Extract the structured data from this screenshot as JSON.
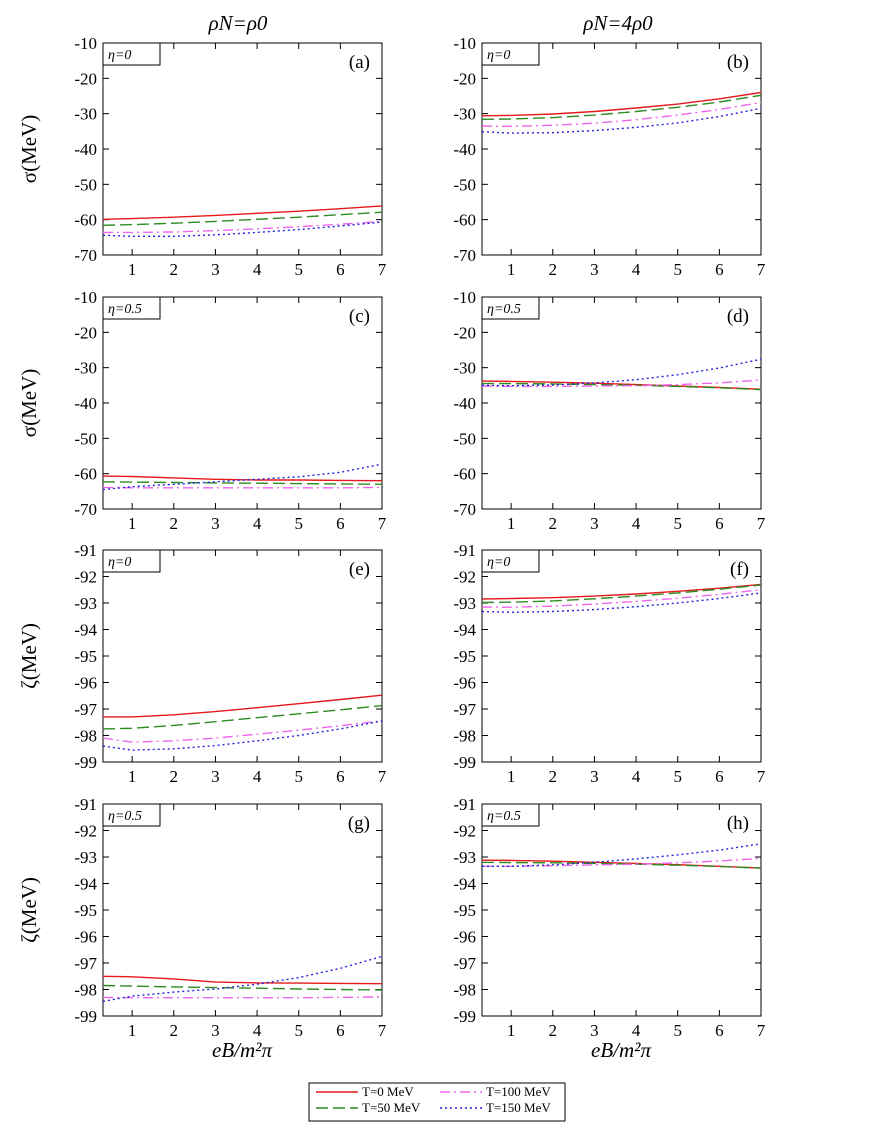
{
  "column_titles": [
    "ρN=ρ0",
    "ρN=4ρ0"
  ],
  "xlabel": "eB/m²π",
  "legend": [
    {
      "label": "T=0 MeV",
      "color": "#e41a1c",
      "dash": "solid"
    },
    {
      "label": "T=50 MeV",
      "color": "#2e8b22",
      "dash": "long-dash"
    },
    {
      "label": "T=100 MeV",
      "color": "#ee66ee",
      "dash": "dash-dot"
    },
    {
      "label": "T=150 MeV",
      "color": "#2222dd",
      "dash": "dotted"
    }
  ],
  "chart_data": [
    {
      "type": "line",
      "panel": "(a)",
      "eta_label": "η=0",
      "ylabel": "σ(MeV)",
      "xlim": [
        0.3,
        7
      ],
      "ylim": [
        -70,
        -10
      ],
      "xticks": [
        1,
        2,
        3,
        4,
        5,
        6,
        7
      ],
      "yticks": [
        -10,
        -20,
        -30,
        -40,
        -50,
        -60,
        -70
      ],
      "x": [
        0.3,
        1,
        2,
        3,
        4,
        5,
        6,
        7
      ],
      "series": [
        {
          "name": "T=0 MeV",
          "values": [
            -59.9,
            -59.7,
            -59.3,
            -58.8,
            -58.2,
            -57.6,
            -56.9,
            -56.1
          ]
        },
        {
          "name": "T=50 MeV",
          "values": [
            -61.6,
            -61.4,
            -61.0,
            -60.5,
            -59.9,
            -59.3,
            -58.6,
            -57.9
          ]
        },
        {
          "name": "T=100 MeV",
          "values": [
            -63.6,
            -63.6,
            -63.5,
            -63.1,
            -62.6,
            -62.0,
            -61.3,
            -60.5
          ]
        },
        {
          "name": "T=150 MeV",
          "values": [
            -64.4,
            -64.7,
            -64.7,
            -64.3,
            -63.6,
            -62.8,
            -61.8,
            -60.7
          ]
        }
      ]
    },
    {
      "type": "line",
      "panel": "(b)",
      "eta_label": "η=0",
      "ylabel": "",
      "xlim": [
        0.3,
        7
      ],
      "ylim": [
        -70,
        -10
      ],
      "xticks": [
        1,
        2,
        3,
        4,
        5,
        6,
        7
      ],
      "yticks": [
        -10,
        -20,
        -30,
        -40,
        -50,
        -60,
        -70
      ],
      "x": [
        0.3,
        1,
        2,
        3,
        4,
        5,
        6,
        7
      ],
      "series": [
        {
          "name": "T=0 MeV",
          "values": [
            -30.6,
            -30.5,
            -30.1,
            -29.4,
            -28.4,
            -27.3,
            -25.8,
            -24.0
          ]
        },
        {
          "name": "T=50 MeV",
          "values": [
            -31.6,
            -31.5,
            -31.1,
            -30.4,
            -29.4,
            -28.2,
            -26.7,
            -24.8
          ]
        },
        {
          "name": "T=100 MeV",
          "values": [
            -33.5,
            -33.6,
            -33.3,
            -32.7,
            -31.7,
            -30.4,
            -28.8,
            -26.8
          ]
        },
        {
          "name": "T=150 MeV",
          "values": [
            -35.1,
            -35.5,
            -35.4,
            -34.8,
            -33.9,
            -32.6,
            -30.8,
            -28.5
          ]
        }
      ]
    },
    {
      "type": "line",
      "panel": "(c)",
      "eta_label": "η=0.5",
      "ylabel": "σ(MeV)",
      "xlim": [
        0.3,
        7
      ],
      "ylim": [
        -70,
        -10
      ],
      "xticks": [
        1,
        2,
        3,
        4,
        5,
        6,
        7
      ],
      "yticks": [
        -10,
        -20,
        -30,
        -40,
        -50,
        -60,
        -70
      ],
      "x": [
        0.3,
        1,
        2,
        3,
        4,
        5,
        6,
        7
      ],
      "series": [
        {
          "name": "T=0 MeV",
          "values": [
            -60.7,
            -60.8,
            -61.2,
            -61.6,
            -61.8,
            -61.8,
            -61.9,
            -62.0
          ]
        },
        {
          "name": "T=50 MeV",
          "values": [
            -62.3,
            -62.4,
            -62.5,
            -62.6,
            -62.7,
            -62.8,
            -62.9,
            -63.0
          ]
        },
        {
          "name": "T=100 MeV",
          "values": [
            -63.9,
            -64.0,
            -64.0,
            -64.0,
            -64.0,
            -64.0,
            -64.0,
            -63.9
          ]
        },
        {
          "name": "T=150 MeV",
          "values": [
            -64.5,
            -63.7,
            -63.0,
            -62.3,
            -61.6,
            -60.9,
            -59.6,
            -57.3
          ]
        }
      ]
    },
    {
      "type": "line",
      "panel": "(d)",
      "eta_label": "η=0.5",
      "ylabel": "",
      "xlim": [
        0.3,
        7
      ],
      "ylim": [
        -70,
        -10
      ],
      "xticks": [
        1,
        2,
        3,
        4,
        5,
        6,
        7
      ],
      "yticks": [
        -10,
        -20,
        -30,
        -40,
        -50,
        -60,
        -70
      ],
      "x": [
        0.3,
        1,
        2,
        3,
        4,
        5,
        6,
        7
      ],
      "series": [
        {
          "name": "T=0 MeV",
          "values": [
            -33.8,
            -33.9,
            -34.1,
            -34.4,
            -34.8,
            -35.2,
            -35.6,
            -36.1
          ]
        },
        {
          "name": "T=50 MeV",
          "values": [
            -34.5,
            -34.5,
            -34.6,
            -34.8,
            -35.0,
            -35.3,
            -35.7,
            -36.2
          ]
        },
        {
          "name": "T=100 MeV",
          "values": [
            -35.2,
            -35.3,
            -35.3,
            -35.2,
            -35.1,
            -34.8,
            -34.3,
            -33.5
          ]
        },
        {
          "name": "T=150 MeV",
          "values": [
            -35.0,
            -35.1,
            -34.9,
            -34.3,
            -33.4,
            -32.0,
            -30.1,
            -27.6
          ]
        }
      ]
    },
    {
      "type": "line",
      "panel": "(e)",
      "eta_label": "η=0",
      "ylabel": "ζ(MeV)",
      "xlim": [
        0.3,
        7
      ],
      "ylim": [
        -99,
        -91
      ],
      "xticks": [
        1,
        2,
        3,
        4,
        5,
        6,
        7
      ],
      "yticks": [
        -91,
        -92,
        -93,
        -94,
        -95,
        -96,
        -97,
        -98,
        -99
      ],
      "x": [
        0.3,
        1,
        2,
        3,
        4,
        5,
        6,
        7
      ],
      "series": [
        {
          "name": "T=0 MeV",
          "values": [
            -97.3,
            -97.3,
            -97.22,
            -97.1,
            -96.95,
            -96.8,
            -96.64,
            -96.48
          ]
        },
        {
          "name": "T=50 MeV",
          "values": [
            -97.75,
            -97.73,
            -97.62,
            -97.48,
            -97.33,
            -97.18,
            -97.03,
            -96.87
          ]
        },
        {
          "name": "T=100 MeV",
          "values": [
            -98.1,
            -98.25,
            -98.2,
            -98.1,
            -97.95,
            -97.8,
            -97.63,
            -97.45
          ]
        },
        {
          "name": "T=150 MeV",
          "values": [
            -98.4,
            -98.55,
            -98.5,
            -98.38,
            -98.2,
            -98.0,
            -97.75,
            -97.45
          ]
        }
      ]
    },
    {
      "type": "line",
      "panel": "(f)",
      "eta_label": "η=0",
      "ylabel": "",
      "xlim": [
        0.3,
        7
      ],
      "ylim": [
        -99,
        -91
      ],
      "xticks": [
        1,
        2,
        3,
        4,
        5,
        6,
        7
      ],
      "yticks": [
        -91,
        -92,
        -93,
        -94,
        -95,
        -96,
        -97,
        -98,
        -99
      ],
      "x": [
        0.3,
        1,
        2,
        3,
        4,
        5,
        6,
        7
      ],
      "series": [
        {
          "name": "T=0 MeV",
          "values": [
            -92.85,
            -92.83,
            -92.8,
            -92.74,
            -92.66,
            -92.56,
            -92.44,
            -92.3
          ]
        },
        {
          "name": "T=50 MeV",
          "values": [
            -92.98,
            -92.97,
            -92.92,
            -92.84,
            -92.74,
            -92.62,
            -92.48,
            -92.32
          ]
        },
        {
          "name": "T=100 MeV",
          "values": [
            -93.15,
            -93.16,
            -93.12,
            -93.04,
            -92.94,
            -92.82,
            -92.67,
            -92.5
          ]
        },
        {
          "name": "T=150 MeV",
          "values": [
            -93.32,
            -93.35,
            -93.32,
            -93.25,
            -93.14,
            -93.0,
            -92.83,
            -92.62
          ]
        }
      ]
    },
    {
      "type": "line",
      "panel": "(g)",
      "eta_label": "η=0.5",
      "ylabel": "ζ(MeV)",
      "xlim": [
        0.3,
        7
      ],
      "ylim": [
        -99,
        -91
      ],
      "xticks": [
        1,
        2,
        3,
        4,
        5,
        6,
        7
      ],
      "yticks": [
        -91,
        -92,
        -93,
        -94,
        -95,
        -96,
        -97,
        -98,
        -99
      ],
      "x": [
        0.3,
        1,
        2,
        3,
        4,
        5,
        6,
        7
      ],
      "series": [
        {
          "name": "T=0 MeV",
          "values": [
            -97.5,
            -97.52,
            -97.6,
            -97.72,
            -97.75,
            -97.76,
            -97.77,
            -97.78
          ]
        },
        {
          "name": "T=50 MeV",
          "values": [
            -97.85,
            -97.87,
            -97.9,
            -97.93,
            -97.95,
            -97.98,
            -98.0,
            -98.02
          ]
        },
        {
          "name": "T=100 MeV",
          "values": [
            -98.3,
            -98.31,
            -98.31,
            -98.31,
            -98.31,
            -98.31,
            -98.3,
            -98.28
          ]
        },
        {
          "name": "T=150 MeV",
          "values": [
            -98.45,
            -98.25,
            -98.1,
            -97.98,
            -97.8,
            -97.55,
            -97.2,
            -96.75
          ]
        }
      ]
    },
    {
      "type": "line",
      "panel": "(h)",
      "eta_label": "η=0.5",
      "ylabel": "",
      "xlim": [
        0.3,
        7
      ],
      "ylim": [
        -99,
        -91
      ],
      "xticks": [
        1,
        2,
        3,
        4,
        5,
        6,
        7
      ],
      "yticks": [
        -91,
        -92,
        -93,
        -94,
        -95,
        -96,
        -97,
        -98,
        -99
      ],
      "x": [
        0.3,
        1,
        2,
        3,
        4,
        5,
        6,
        7
      ],
      "series": [
        {
          "name": "T=0 MeV",
          "values": [
            -93.12,
            -93.13,
            -93.16,
            -93.2,
            -93.24,
            -93.29,
            -93.35,
            -93.42
          ]
        },
        {
          "name": "T=50 MeV",
          "values": [
            -93.2,
            -93.21,
            -93.22,
            -93.24,
            -93.27,
            -93.31,
            -93.36,
            -93.42
          ]
        },
        {
          "name": "T=100 MeV",
          "values": [
            -93.35,
            -93.35,
            -93.33,
            -93.3,
            -93.27,
            -93.22,
            -93.15,
            -93.05
          ]
        },
        {
          "name": "T=150 MeV",
          "values": [
            -93.35,
            -93.35,
            -93.3,
            -93.2,
            -93.07,
            -92.92,
            -92.74,
            -92.5
          ]
        }
      ]
    }
  ]
}
